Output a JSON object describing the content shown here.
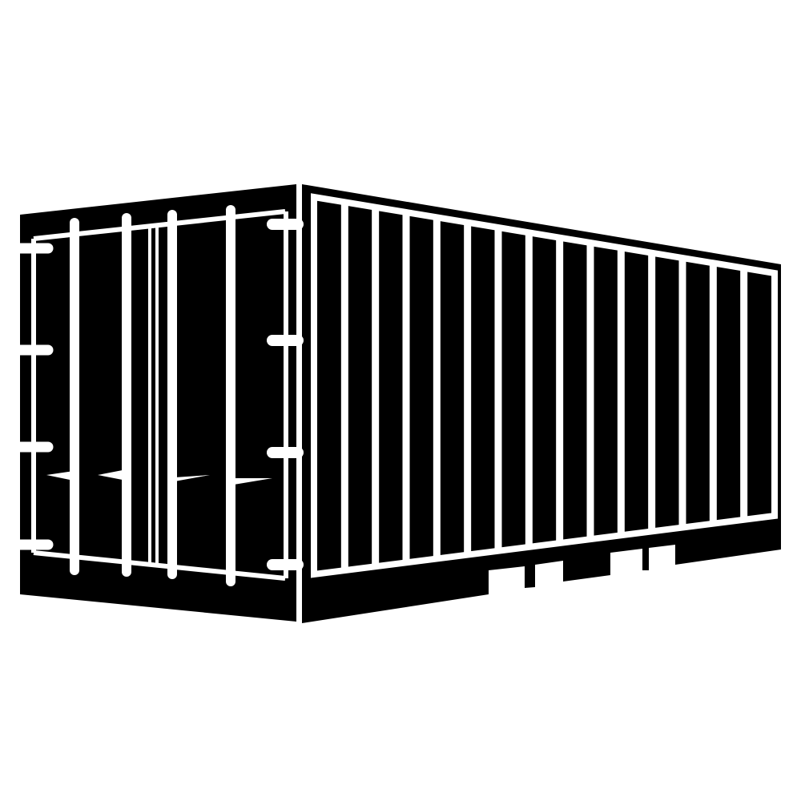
{
  "illustration": {
    "subject": "shipping-container-icon",
    "colors": {
      "fill": "#000000",
      "background": "#ffffff",
      "lines": "#ffffff"
    },
    "side_panel_count": 15,
    "door_rod_count": 4,
    "hinge_count_per_side": 4
  }
}
